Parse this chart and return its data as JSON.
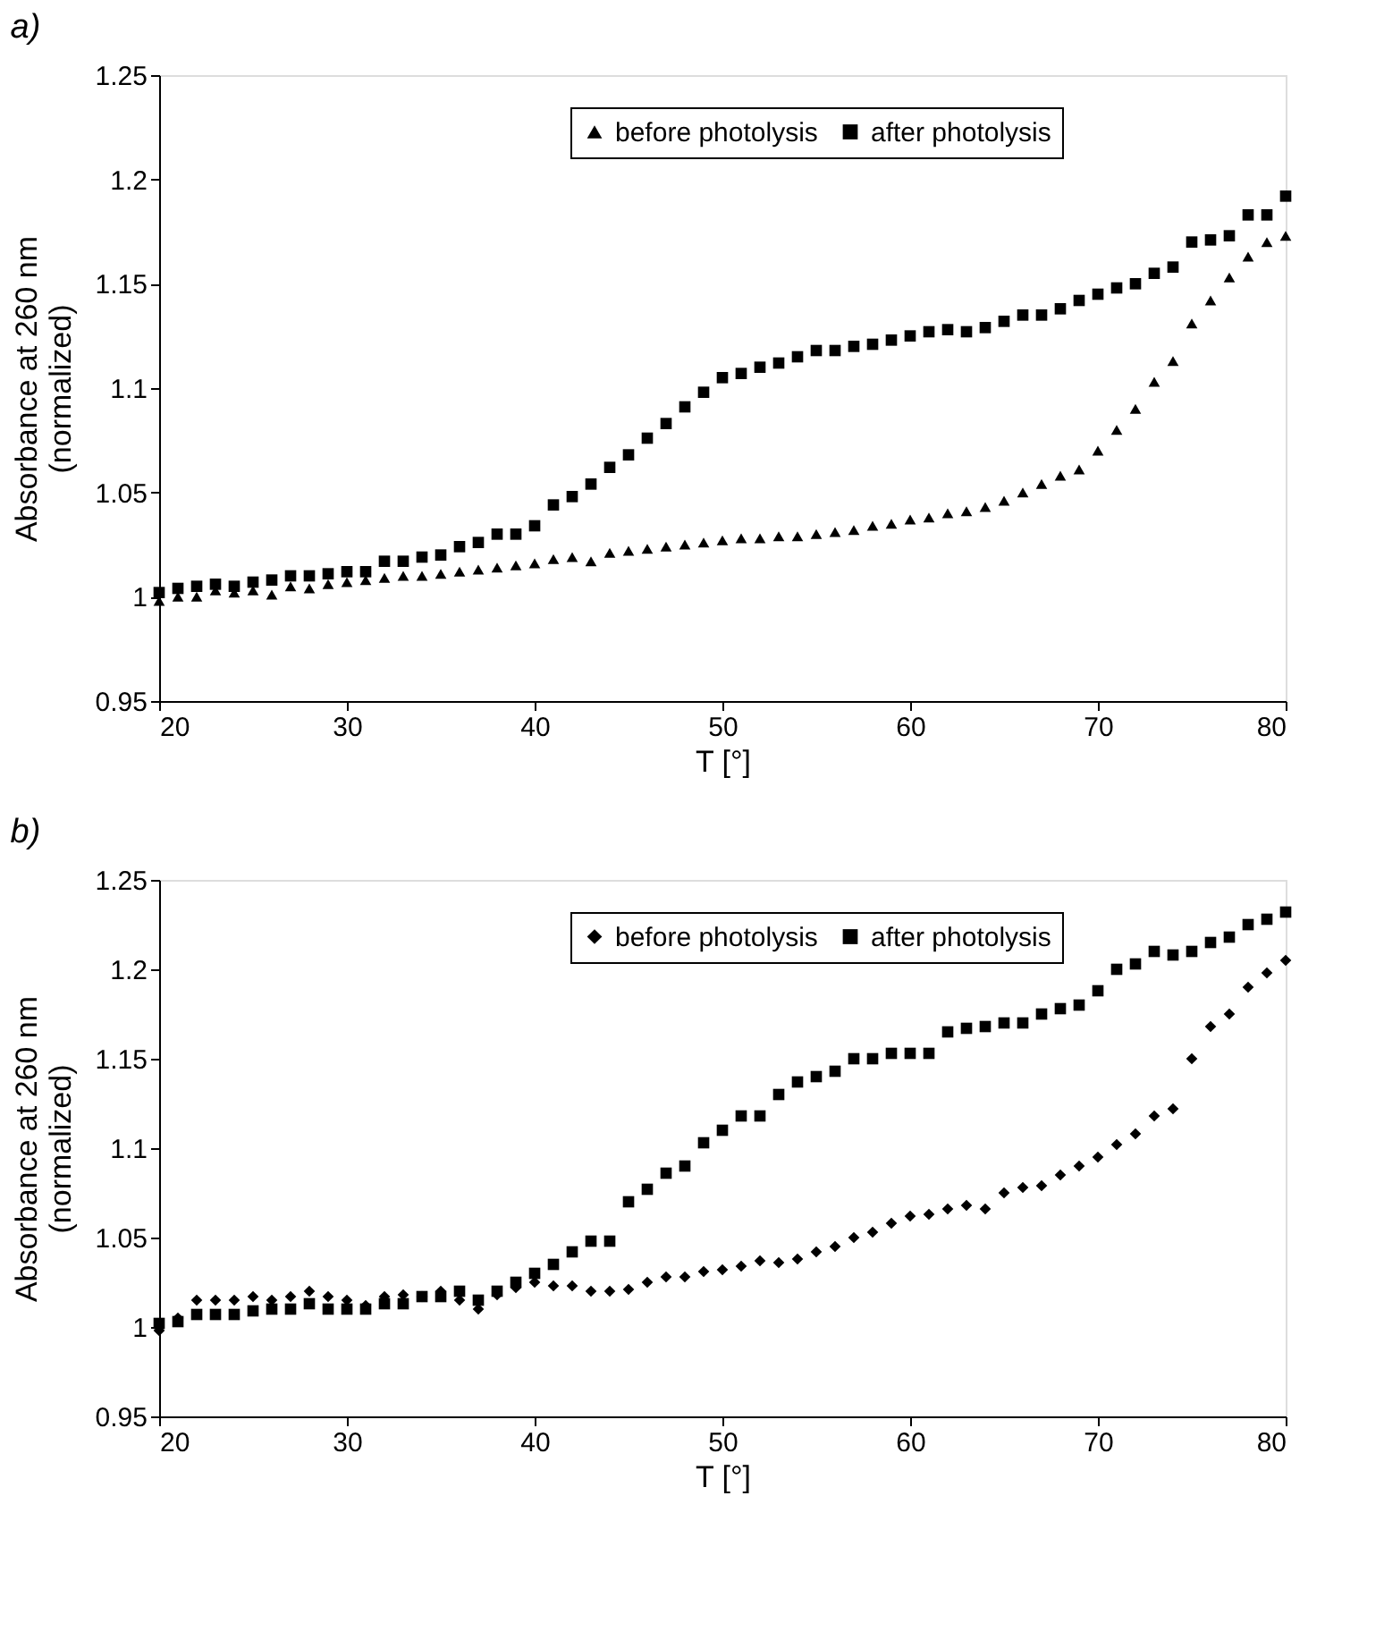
{
  "chart_data": [
    {
      "type": "scatter",
      "title": "a)",
      "xlabel": "T [°]",
      "ylabel": "Absorbance at 260 nm (normalized)",
      "xlim": [
        20,
        80
      ],
      "xticks": [
        20,
        30,
        40,
        50,
        60,
        70,
        80
      ],
      "ylim": [
        0.95,
        1.25
      ],
      "yticks": [
        0.95,
        1,
        1.05,
        1.1,
        1.15,
        1.2,
        1.25
      ],
      "grid": false,
      "legend": "top",
      "x": [
        20,
        21,
        22,
        23,
        24,
        25,
        26,
        27,
        28,
        29,
        30,
        31,
        32,
        33,
        34,
        35,
        36,
        37,
        38,
        39,
        40,
        41,
        42,
        43,
        44,
        45,
        46,
        47,
        48,
        49,
        50,
        51,
        52,
        53,
        54,
        55,
        56,
        57,
        58,
        59,
        60,
        61,
        62,
        63,
        64,
        65,
        66,
        67,
        68,
        69,
        70,
        71,
        72,
        73,
        74,
        75,
        76,
        77,
        78,
        79,
        80
      ],
      "series": [
        {
          "name": "before photolysis",
          "color": "#000000",
          "marker": "triangle",
          "values": [
            0.998,
            1.0,
            1.0,
            1.003,
            1.002,
            1.003,
            1.001,
            1.005,
            1.004,
            1.006,
            1.007,
            1.008,
            1.009,
            1.01,
            1.01,
            1.011,
            1.012,
            1.013,
            1.014,
            1.015,
            1.016,
            1.018,
            1.019,
            1.017,
            1.021,
            1.022,
            1.023,
            1.024,
            1.025,
            1.026,
            1.027,
            1.028,
            1.028,
            1.029,
            1.029,
            1.03,
            1.031,
            1.032,
            1.034,
            1.035,
            1.037,
            1.038,
            1.04,
            1.041,
            1.043,
            1.046,
            1.05,
            1.054,
            1.058,
            1.061,
            1.07,
            1.08,
            1.09,
            1.103,
            1.113,
            1.131,
            1.142,
            1.153,
            1.163,
            1.17,
            1.173
          ]
        },
        {
          "name": "after photolysis",
          "color": "#000000",
          "marker": "square",
          "values": [
            1.002,
            1.004,
            1.005,
            1.006,
            1.005,
            1.007,
            1.008,
            1.01,
            1.01,
            1.011,
            1.012,
            1.012,
            1.017,
            1.017,
            1.019,
            1.02,
            1.024,
            1.026,
            1.03,
            1.03,
            1.034,
            1.044,
            1.048,
            1.054,
            1.062,
            1.068,
            1.076,
            1.083,
            1.091,
            1.098,
            1.105,
            1.107,
            1.11,
            1.112,
            1.115,
            1.118,
            1.118,
            1.12,
            1.121,
            1.123,
            1.125,
            1.127,
            1.128,
            1.127,
            1.129,
            1.132,
            1.135,
            1.135,
            1.138,
            1.142,
            1.145,
            1.148,
            1.15,
            1.155,
            1.158,
            1.17,
            1.171,
            1.173,
            1.183,
            1.183,
            1.192
          ]
        }
      ]
    },
    {
      "type": "scatter",
      "title": "b)",
      "xlabel": "T [°]",
      "ylabel": "Absorbance at 260 nm (normalized)",
      "xlim": [
        20,
        80
      ],
      "xticks": [
        20,
        30,
        40,
        50,
        60,
        70,
        80
      ],
      "ylim": [
        0.95,
        1.25
      ],
      "yticks": [
        0.95,
        1,
        1.05,
        1.1,
        1.15,
        1.2,
        1.25
      ],
      "grid": false,
      "legend": "top",
      "x": [
        20,
        21,
        22,
        23,
        24,
        25,
        26,
        27,
        28,
        29,
        30,
        31,
        32,
        33,
        34,
        35,
        36,
        37,
        38,
        39,
        40,
        41,
        42,
        43,
        44,
        45,
        46,
        47,
        48,
        49,
        50,
        51,
        52,
        53,
        54,
        55,
        56,
        57,
        58,
        59,
        60,
        61,
        62,
        63,
        64,
        65,
        66,
        67,
        68,
        69,
        70,
        71,
        72,
        73,
        74,
        75,
        76,
        77,
        78,
        79,
        80
      ],
      "series": [
        {
          "name": "before photolysis",
          "color": "#000000",
          "marker": "diamond",
          "values": [
            0.998,
            1.005,
            1.015,
            1.015,
            1.015,
            1.017,
            1.015,
            1.017,
            1.02,
            1.017,
            1.015,
            1.012,
            1.017,
            1.018,
            1.017,
            1.02,
            1.015,
            1.01,
            1.018,
            1.022,
            1.025,
            1.023,
            1.023,
            1.02,
            1.02,
            1.021,
            1.025,
            1.028,
            1.028,
            1.031,
            1.032,
            1.034,
            1.037,
            1.036,
            1.038,
            1.042,
            1.045,
            1.05,
            1.053,
            1.058,
            1.062,
            1.063,
            1.066,
            1.068,
            1.066,
            1.075,
            1.078,
            1.079,
            1.085,
            1.09,
            1.095,
            1.102,
            1.108,
            1.118,
            1.122,
            1.15,
            1.168,
            1.175,
            1.19,
            1.198,
            1.205
          ]
        },
        {
          "name": "after photolysis",
          "color": "#000000",
          "marker": "square",
          "values": [
            1.002,
            1.003,
            1.007,
            1.007,
            1.007,
            1.009,
            1.01,
            1.01,
            1.013,
            1.01,
            1.01,
            1.01,
            1.013,
            1.013,
            1.017,
            1.017,
            1.02,
            1.015,
            1.02,
            1.025,
            1.03,
            1.035,
            1.042,
            1.048,
            1.048,
            1.07,
            1.077,
            1.086,
            1.09,
            1.103,
            1.11,
            1.118,
            1.118,
            1.13,
            1.137,
            1.14,
            1.143,
            1.15,
            1.15,
            1.153,
            1.153,
            1.153,
            1.165,
            1.167,
            1.168,
            1.17,
            1.17,
            1.175,
            1.178,
            1.18,
            1.188,
            1.2,
            1.203,
            1.21,
            1.208,
            1.21,
            1.215,
            1.218,
            1.225,
            1.228,
            1.232
          ]
        }
      ]
    }
  ]
}
